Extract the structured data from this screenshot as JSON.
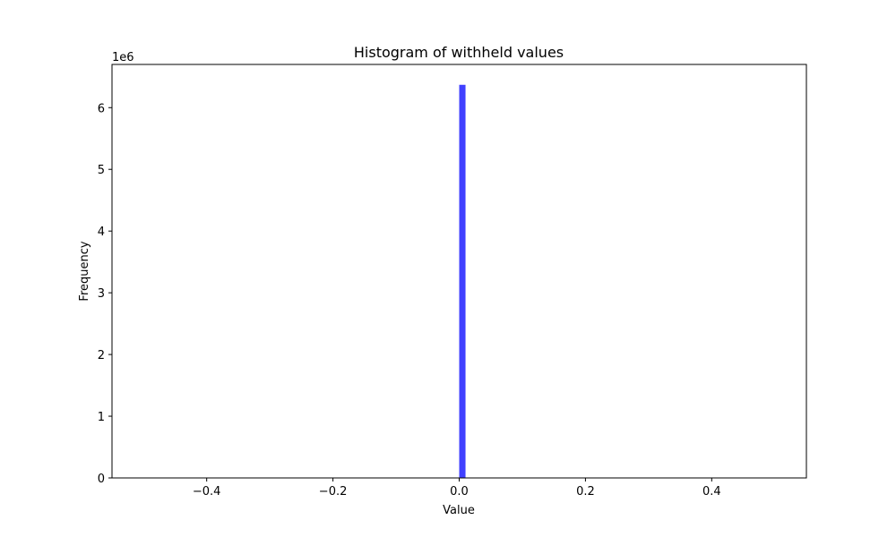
{
  "chart_data": {
    "type": "bar",
    "title": "Histogram of withheld values",
    "xlabel": "Value",
    "ylabel": "Frequency",
    "y_offset_text": "1e6",
    "xlim": [
      -0.55,
      0.55
    ],
    "ylim": [
      0,
      6.7
    ],
    "y_scale_multiplier": 1000000,
    "x_ticks": [
      -0.4,
      -0.2,
      0.0,
      0.2,
      0.4
    ],
    "x_tick_labels": [
      "−0.4",
      "−0.2",
      "0.0",
      "0.2",
      "0.4"
    ],
    "y_ticks": [
      0,
      1,
      2,
      3,
      4,
      5,
      6
    ],
    "y_tick_labels": [
      "0",
      "1",
      "2",
      "3",
      "4",
      "5",
      "6"
    ],
    "bins": [
      {
        "x0": 0.0,
        "x1": 0.01,
        "count": 6.37
      }
    ],
    "bar_color": "#4040ff",
    "grid": false,
    "legend": "none"
  }
}
